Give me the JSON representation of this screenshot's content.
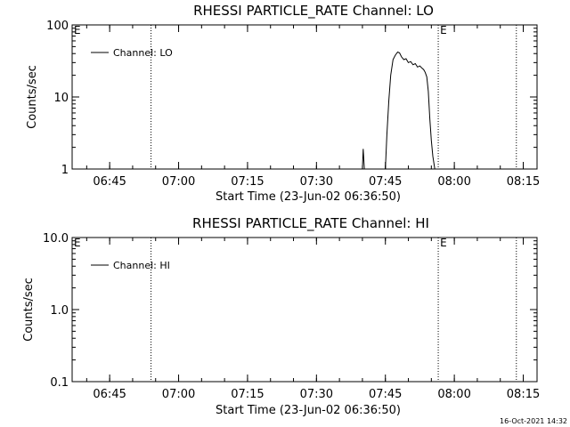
{
  "chart_data": [
    {
      "type": "line",
      "title": "RHESSI PARTICLE_RATE Channel: LO",
      "xlabel": "Start Time (23-Jun-02 06:36:50)",
      "ylabel": "Counts/sec",
      "y_scale": "log",
      "ylim": [
        1,
        100
      ],
      "y_ticks": [
        1,
        10,
        100
      ],
      "y_tick_labels": [
        "1",
        "10",
        "100"
      ],
      "xlim": [
        "06:36:50",
        "08:18:00"
      ],
      "x_ticks": [
        "06:45",
        "07:00",
        "07:15",
        "07:30",
        "07:45",
        "08:00",
        "08:15"
      ],
      "vlines": [
        "06:54:00",
        "07:56:30",
        "08:13:30"
      ],
      "markers": [
        {
          "time": "06:36:50",
          "label": "E"
        },
        {
          "time": "07:56:30",
          "label": "E"
        }
      ],
      "legend": {
        "label": "Channel: LO",
        "placement": "top-left"
      },
      "series": [
        {
          "name": "Channel: LO",
          "x": [
            "07:40:00",
            "07:40:10",
            "07:40:25",
            "07:45:00",
            "07:45:20",
            "07:45:45",
            "07:46:10",
            "07:46:40",
            "07:47:10",
            "07:47:40",
            "07:48:05",
            "07:48:30",
            "07:49:00",
            "07:49:30",
            "07:50:00",
            "07:50:30",
            "07:51:00",
            "07:51:30",
            "07:52:00",
            "07:52:30",
            "07:53:00",
            "07:53:20",
            "07:53:40",
            "07:54:00",
            "07:54:20",
            "07:54:40",
            "07:55:00",
            "07:55:20",
            "07:55:45"
          ],
          "y": [
            1,
            1.9,
            1,
            1,
            3,
            9,
            20,
            33,
            38,
            42,
            41,
            36,
            33,
            34,
            30,
            31,
            28,
            29,
            26,
            27,
            25,
            24,
            22,
            19,
            12,
            5,
            2.5,
            1.5,
            1
          ]
        }
      ]
    },
    {
      "type": "line",
      "title": "RHESSI PARTICLE_RATE Channel: HI",
      "xlabel": "Start Time (23-Jun-02 06:36:50)",
      "ylabel": "Counts/sec",
      "y_scale": "log",
      "ylim": [
        0.1,
        10
      ],
      "y_ticks": [
        0.1,
        1,
        10
      ],
      "y_tick_labels": [
        "0.1",
        "1.0",
        "10.0"
      ],
      "xlim": [
        "06:36:50",
        "08:18:00"
      ],
      "x_ticks": [
        "06:45",
        "07:00",
        "07:15",
        "07:30",
        "07:45",
        "08:00",
        "08:15"
      ],
      "vlines": [
        "06:54:00",
        "07:56:30",
        "08:13:30"
      ],
      "markers": [
        {
          "time": "06:36:50",
          "label": "E"
        },
        {
          "time": "07:56:30",
          "label": "E"
        }
      ],
      "legend": {
        "label": "Channel: HI",
        "placement": "top-left"
      },
      "series": [
        {
          "name": "Channel: HI",
          "x": [],
          "y": []
        }
      ]
    }
  ],
  "footer": {
    "timestamp": "16-Oct-2021 14:32"
  }
}
